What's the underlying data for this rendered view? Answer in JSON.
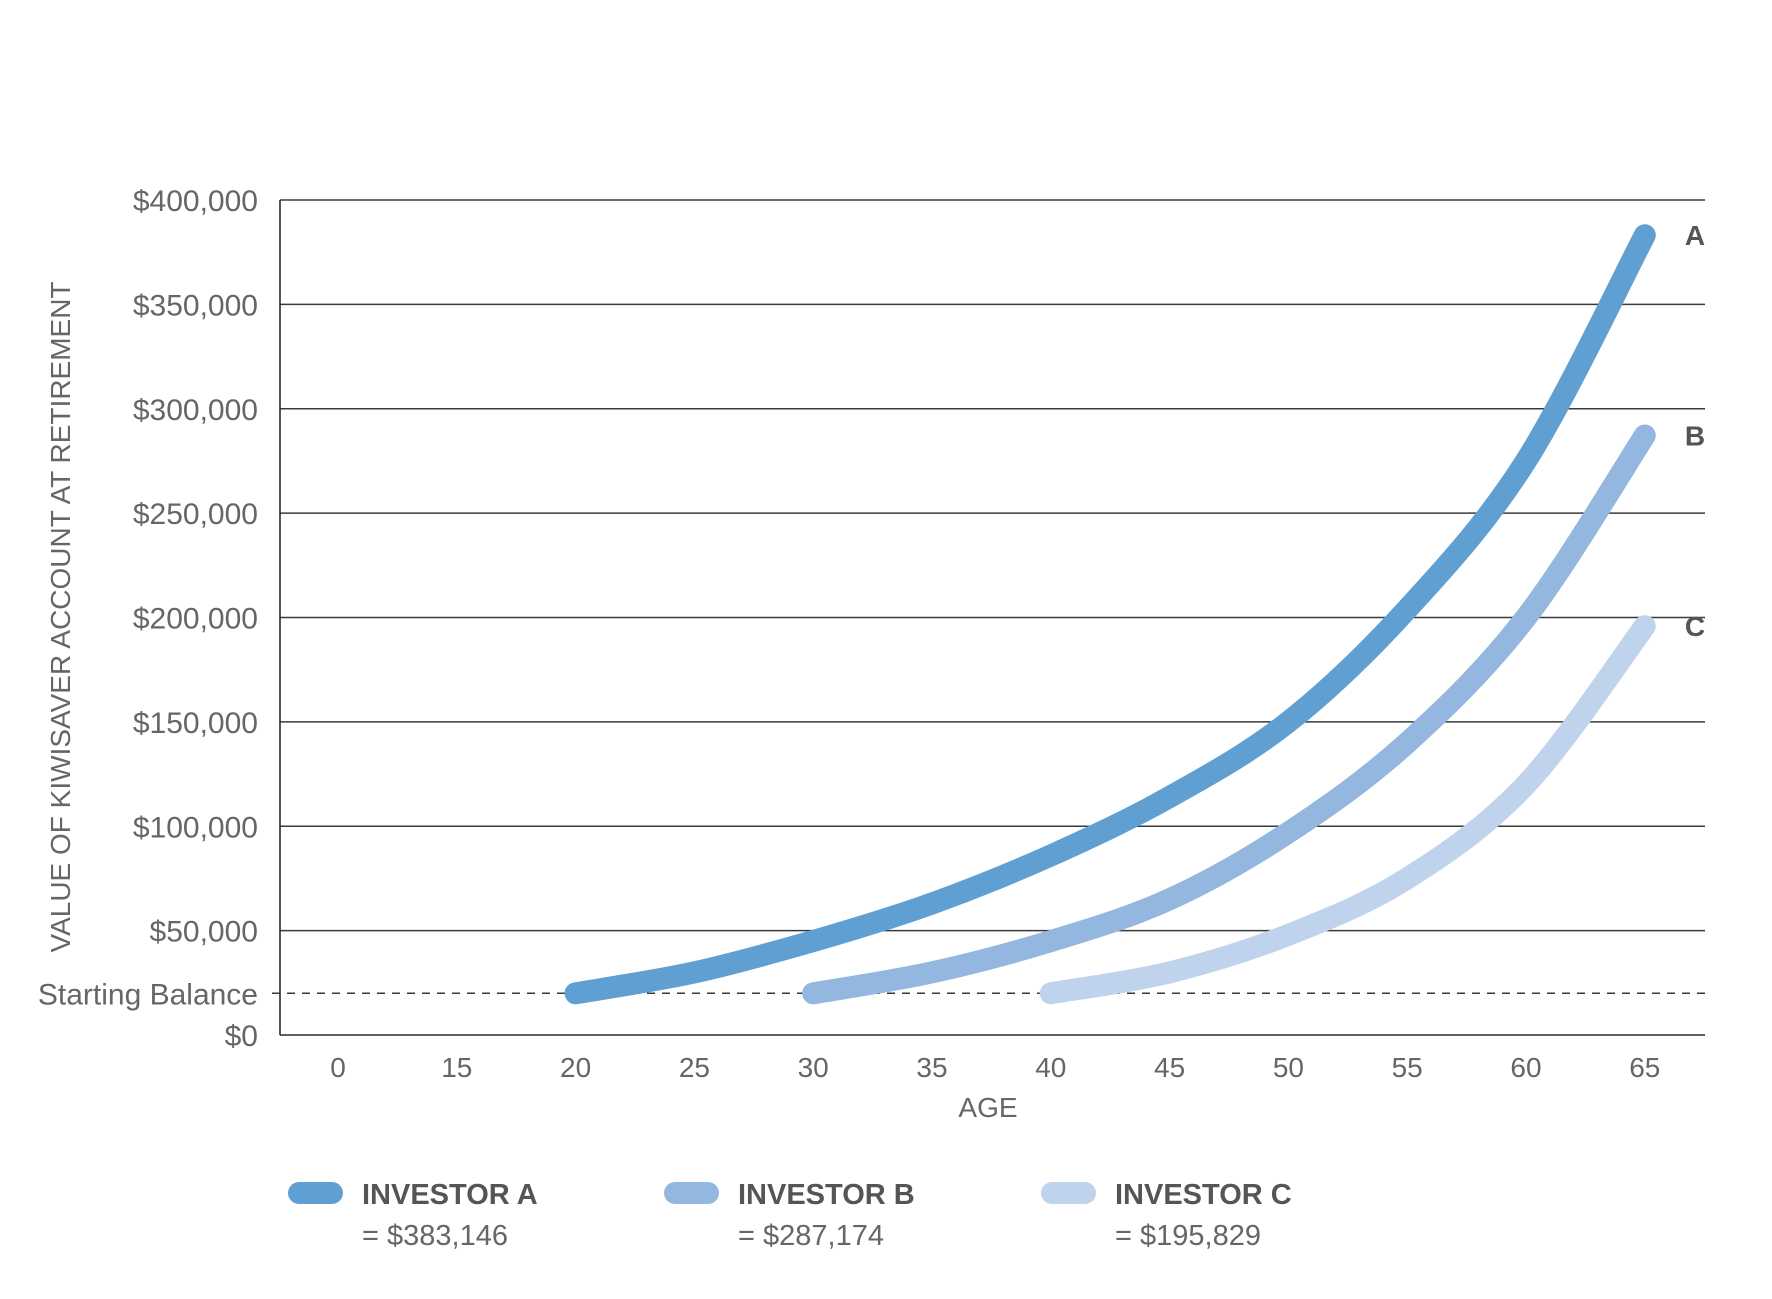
{
  "chart_data": {
    "type": "line",
    "title": "",
    "xlabel": "AGE",
    "ylabel": "VALUE OF KIWISAVER ACCOUNT AT RETIREMENT",
    "x_ticks": [
      "0",
      "15",
      "20",
      "25",
      "30",
      "35",
      "40",
      "45",
      "50",
      "55",
      "60",
      "65"
    ],
    "y_ticks": [
      {
        "value": 0,
        "label": "$0"
      },
      {
        "value": 50000,
        "label": "$50,000"
      },
      {
        "value": 100000,
        "label": "$100,000"
      },
      {
        "value": 150000,
        "label": "$150,000"
      },
      {
        "value": 200000,
        "label": "$200,000"
      },
      {
        "value": 250000,
        "label": "$250,000"
      },
      {
        "value": 300000,
        "label": "$300,000"
      },
      {
        "value": 350000,
        "label": "$350,000"
      },
      {
        "value": 400000,
        "label": "$400,000"
      }
    ],
    "ylim": [
      0,
      400000
    ],
    "grid": true,
    "reference_line": {
      "value": 20000,
      "label": "Starting Balance",
      "style": "dashed"
    },
    "legend_placement": "bottom",
    "series": [
      {
        "end_label": "A",
        "legend_name": "INVESTOR A",
        "legend_value": "= $383,146",
        "color": "#5f9fd1",
        "points": [
          [
            20,
            20000
          ],
          [
            25,
            30000
          ],
          [
            30,
            45000
          ],
          [
            35,
            63000
          ],
          [
            40,
            86000
          ],
          [
            45,
            114000
          ],
          [
            50,
            150000
          ],
          [
            55,
            204000
          ],
          [
            60,
            275000
          ],
          [
            65,
            383146
          ]
        ]
      },
      {
        "end_label": "B",
        "legend_name": "INVESTOR B",
        "legend_value": "= $287,174",
        "color": "#93b7de",
        "points": [
          [
            30,
            20000
          ],
          [
            35,
            30000
          ],
          [
            40,
            45000
          ],
          [
            45,
            65000
          ],
          [
            50,
            97000
          ],
          [
            55,
            140000
          ],
          [
            60,
            200000
          ],
          [
            65,
            287174
          ]
        ]
      },
      {
        "end_label": "C",
        "legend_name": "INVESTOR C",
        "legend_value": "= $195,829",
        "color": "#bfd4ec",
        "points": [
          [
            40,
            20000
          ],
          [
            45,
            30000
          ],
          [
            50,
            48000
          ],
          [
            55,
            75000
          ],
          [
            60,
            120000
          ],
          [
            65,
            195829
          ]
        ]
      }
    ]
  }
}
